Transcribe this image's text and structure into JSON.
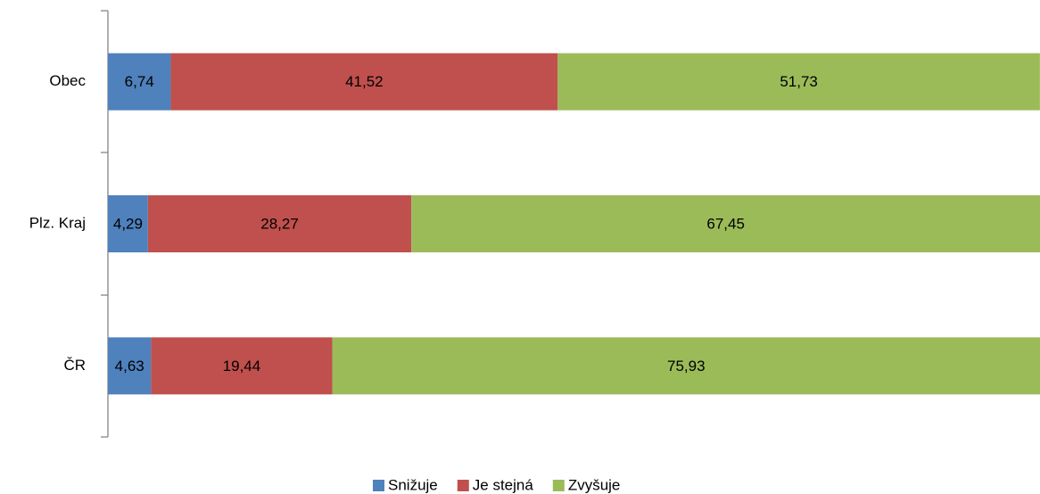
{
  "chart_data": {
    "type": "stacked-bar-horizontal",
    "categories": [
      "Obec",
      "Plz. Kraj",
      "ČR"
    ],
    "series": [
      {
        "name": "Snižuje",
        "color": "#4f81bd",
        "values": [
          6.74,
          4.29,
          4.63
        ],
        "value_labels": [
          "6,74",
          "4,29",
          "4,63"
        ]
      },
      {
        "name": "Je stejná",
        "color": "#c0504d",
        "values": [
          41.52,
          28.27,
          19.44
        ],
        "value_labels": [
          "41,52",
          "28,27",
          "19,44"
        ]
      },
      {
        "name": "Zvyšuje",
        "color": "#9bbb59",
        "values": [
          51.73,
          67.45,
          75.93
        ],
        "value_labels": [
          "51,73",
          "67,45",
          "75,93"
        ]
      }
    ],
    "xlim": [
      0,
      100
    ],
    "legend": "bottom"
  }
}
